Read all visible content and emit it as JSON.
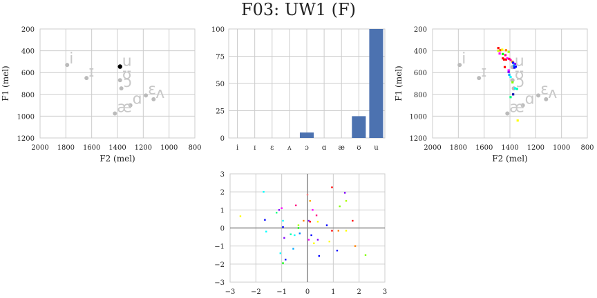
{
  "page": {
    "title": "F03: UW1 (F)"
  },
  "colors": {
    "bar": "#4c72b0",
    "grid": "#cccccc",
    "vowel_grey": "#bbbbbb",
    "zero_line": "#888888"
  },
  "chart_data": [
    {
      "id": "formant-left",
      "type": "scatter",
      "xlabel": "F2 (mel)",
      "ylabel": "F1 (mel)",
      "xlim": [
        2000,
        800
      ],
      "ylim": [
        1200,
        200
      ],
      "xticks": [
        "2000",
        "1800",
        "1600",
        "1400",
        "1200",
        "1000",
        "800"
      ],
      "yticks": [
        "200",
        "400",
        "600",
        "800",
        "1000",
        "1200"
      ],
      "grid": true,
      "vowels": [
        {
          "label": "i",
          "x": 1790,
          "y": 530
        },
        {
          "label": "ɪ",
          "x": 1640,
          "y": 650
        },
        {
          "label": "u",
          "x": 1380,
          "y": 550
        },
        {
          "label": "ʊ",
          "x": 1380,
          "y": 670
        },
        {
          "label": "ɔ",
          "x": 1370,
          "y": 745
        },
        {
          "label": "ɛ",
          "x": 1180,
          "y": 810
        },
        {
          "label": "ʌ",
          "x": 1120,
          "y": 845
        },
        {
          "label": "ɑ",
          "x": 1300,
          "y": 900
        },
        {
          "label": "æ",
          "x": 1420,
          "y": 975
        }
      ],
      "highlight": {
        "x": 1380,
        "y": 545,
        "color": "#000000"
      }
    },
    {
      "id": "bar-middle",
      "type": "bar",
      "categories": [
        "i",
        "ɪ",
        "ɛ",
        "ʌ",
        "ɔ",
        "ɑ",
        "æ",
        "ʊ",
        "u"
      ],
      "values": [
        0,
        0,
        0,
        0,
        5,
        0,
        0,
        20,
        100
      ],
      "ylim": [
        0,
        100
      ],
      "yticks": [
        "0",
        "25",
        "50",
        "75",
        "100"
      ],
      "grid": true
    },
    {
      "id": "formant-right",
      "type": "scatter",
      "xlabel": "F2 (mel)",
      "ylabel": "F1 (mel)",
      "xlim": [
        2000,
        800
      ],
      "ylim": [
        1200,
        200
      ],
      "xticks": [
        "2000",
        "1800",
        "1600",
        "1400",
        "1200",
        "1000",
        "800"
      ],
      "yticks": [
        "200",
        "400",
        "600",
        "800",
        "1000",
        "1200"
      ],
      "grid": true,
      "vowels": [
        {
          "label": "i",
          "x": 1790,
          "y": 530
        },
        {
          "label": "ɪ",
          "x": 1640,
          "y": 650
        },
        {
          "label": "u",
          "x": 1380,
          "y": 550
        },
        {
          "label": "ʊ",
          "x": 1380,
          "y": 670
        },
        {
          "label": "ɔ",
          "x": 1370,
          "y": 745
        },
        {
          "label": "ɛ",
          "x": 1180,
          "y": 810
        },
        {
          "label": "ʌ",
          "x": 1120,
          "y": 845
        },
        {
          "label": "ɑ",
          "x": 1300,
          "y": 900
        },
        {
          "label": "æ",
          "x": 1420,
          "y": 975
        }
      ],
      "tokens": [
        {
          "x": 1490,
          "y": 375,
          "color": "#ff0000"
        },
        {
          "x": 1475,
          "y": 395,
          "color": "#ff4000"
        },
        {
          "x": 1460,
          "y": 390,
          "color": "#ffff00"
        },
        {
          "x": 1490,
          "y": 400,
          "color": "#ccff00"
        },
        {
          "x": 1430,
          "y": 395,
          "color": "#ff8000"
        },
        {
          "x": 1410,
          "y": 410,
          "color": "#aaff00"
        },
        {
          "x": 1480,
          "y": 425,
          "color": "#ff00ff"
        },
        {
          "x": 1455,
          "y": 430,
          "color": "#00ff00"
        },
        {
          "x": 1435,
          "y": 440,
          "color": "#ff0080"
        },
        {
          "x": 1455,
          "y": 470,
          "color": "#ff0000"
        },
        {
          "x": 1445,
          "y": 480,
          "color": "#ff0000"
        },
        {
          "x": 1430,
          "y": 480,
          "color": "#ff0000"
        },
        {
          "x": 1420,
          "y": 470,
          "color": "#ff00ff"
        },
        {
          "x": 1405,
          "y": 475,
          "color": "#ff0040"
        },
        {
          "x": 1395,
          "y": 485,
          "color": "#ff00aa"
        },
        {
          "x": 1380,
          "y": 500,
          "color": "#ff8000"
        },
        {
          "x": 1375,
          "y": 510,
          "color": "#0000ff"
        },
        {
          "x": 1360,
          "y": 520,
          "color": "#8000ff"
        },
        {
          "x": 1370,
          "y": 535,
          "color": "#0080ff"
        },
        {
          "x": 1355,
          "y": 545,
          "color": "#0000ff"
        },
        {
          "x": 1365,
          "y": 555,
          "color": "#0000ff"
        },
        {
          "x": 1440,
          "y": 550,
          "color": "#ff0000"
        },
        {
          "x": 1410,
          "y": 580,
          "color": "#ff00ff"
        },
        {
          "x": 1410,
          "y": 595,
          "color": "#8000ff"
        },
        {
          "x": 1405,
          "y": 620,
          "color": "#00aaff"
        },
        {
          "x": 1395,
          "y": 640,
          "color": "#00ffff"
        },
        {
          "x": 1380,
          "y": 690,
          "color": "#80ff00"
        },
        {
          "x": 1360,
          "y": 745,
          "color": "#00ffff"
        },
        {
          "x": 1345,
          "y": 750,
          "color": "#00ffaa"
        },
        {
          "x": 1375,
          "y": 800,
          "color": "#0000aa"
        },
        {
          "x": 1395,
          "y": 825,
          "color": "#00ff80"
        },
        {
          "x": 1340,
          "y": 1040,
          "color": "#ffff00"
        }
      ]
    },
    {
      "id": "scatter-bottom",
      "type": "scatter",
      "xlim": [
        -3,
        3
      ],
      "ylim": [
        -3,
        3
      ],
      "xticks": [
        "−3",
        "−2",
        "−1",
        "0",
        "1",
        "2",
        "3"
      ],
      "yticks": [
        "−3",
        "−2",
        "−1",
        "0",
        "1",
        "2",
        "3"
      ],
      "grid": true,
      "points": [
        {
          "x": -2.6,
          "y": 0.65,
          "color": "#ffff00"
        },
        {
          "x": -1.7,
          "y": 2.0,
          "color": "#00ffff"
        },
        {
          "x": -1.65,
          "y": 0.45,
          "color": "#0000ff"
        },
        {
          "x": -1.6,
          "y": -0.2,
          "color": "#00ffff"
        },
        {
          "x": -1.2,
          "y": 0.85,
          "color": "#00ff80"
        },
        {
          "x": -1.1,
          "y": 1.0,
          "color": "#8000ff"
        },
        {
          "x": -1.0,
          "y": 1.1,
          "color": "#ff00ff"
        },
        {
          "x": -1.05,
          "y": -1.4,
          "color": "#00ffff"
        },
        {
          "x": -0.95,
          "y": 0.4,
          "color": "#00ffff"
        },
        {
          "x": -0.95,
          "y": 0.05,
          "color": "#0000ff"
        },
        {
          "x": -0.9,
          "y": -0.55,
          "color": "#8000ff"
        },
        {
          "x": -0.95,
          "y": -1.95,
          "color": "#00ff00"
        },
        {
          "x": -0.85,
          "y": -1.75,
          "color": "#0000ff"
        },
        {
          "x": -0.65,
          "y": -0.35,
          "color": "#00ffaa"
        },
        {
          "x": -0.55,
          "y": -1.15,
          "color": "#00aaff"
        },
        {
          "x": -0.45,
          "y": 1.25,
          "color": "#ff0080"
        },
        {
          "x": -0.5,
          "y": -0.4,
          "color": "#00ffff"
        },
        {
          "x": -0.35,
          "y": 0.15,
          "color": "#aaff00"
        },
        {
          "x": -0.35,
          "y": 0.0,
          "color": "#00ff00"
        },
        {
          "x": -0.3,
          "y": -0.3,
          "color": "#0080ff"
        },
        {
          "x": -0.15,
          "y": 0.4,
          "color": "#ff8000"
        },
        {
          "x": 0.0,
          "y": 1.85,
          "color": "#ff8080"
        },
        {
          "x": 0.05,
          "y": 0.4,
          "color": "#8000ff"
        },
        {
          "x": 0.05,
          "y": -0.65,
          "color": "#ff00ff"
        },
        {
          "x": 0.1,
          "y": 1.5,
          "color": "#ffaa00"
        },
        {
          "x": 0.1,
          "y": 0.35,
          "color": "#ff0000"
        },
        {
          "x": 0.15,
          "y": -0.4,
          "color": "#0000ff"
        },
        {
          "x": 0.2,
          "y": 1.0,
          "color": "#ff00ff"
        },
        {
          "x": 0.25,
          "y": -0.85,
          "color": "#ffff00"
        },
        {
          "x": 0.35,
          "y": 0.7,
          "color": "#ff0080"
        },
        {
          "x": 0.4,
          "y": 0.35,
          "color": "#ffff00"
        },
        {
          "x": 0.4,
          "y": -0.65,
          "color": "#8000ff"
        },
        {
          "x": 0.45,
          "y": -1.55,
          "color": "#0000ff"
        },
        {
          "x": 0.75,
          "y": 0.15,
          "color": "#0000ff"
        },
        {
          "x": 0.85,
          "y": -0.75,
          "color": "#ffff00"
        },
        {
          "x": 0.95,
          "y": -0.15,
          "color": "#ff0000"
        },
        {
          "x": 0.95,
          "y": 2.25,
          "color": "#ff0000"
        },
        {
          "x": 1.15,
          "y": -1.25,
          "color": "#0000ff"
        },
        {
          "x": 1.2,
          "y": -0.15,
          "color": "#ff8000"
        },
        {
          "x": 1.25,
          "y": 1.2,
          "color": "#80ff00"
        },
        {
          "x": 1.45,
          "y": 1.95,
          "color": "#8000ff"
        },
        {
          "x": 1.5,
          "y": 1.5,
          "color": "#aaff00"
        },
        {
          "x": 1.5,
          "y": -0.15,
          "color": "#ffff00"
        },
        {
          "x": 1.75,
          "y": 0.4,
          "color": "#ff0000"
        },
        {
          "x": 1.85,
          "y": -1.0,
          "color": "#ff8000"
        },
        {
          "x": 2.25,
          "y": -1.5,
          "color": "#80ff00"
        }
      ]
    }
  ]
}
